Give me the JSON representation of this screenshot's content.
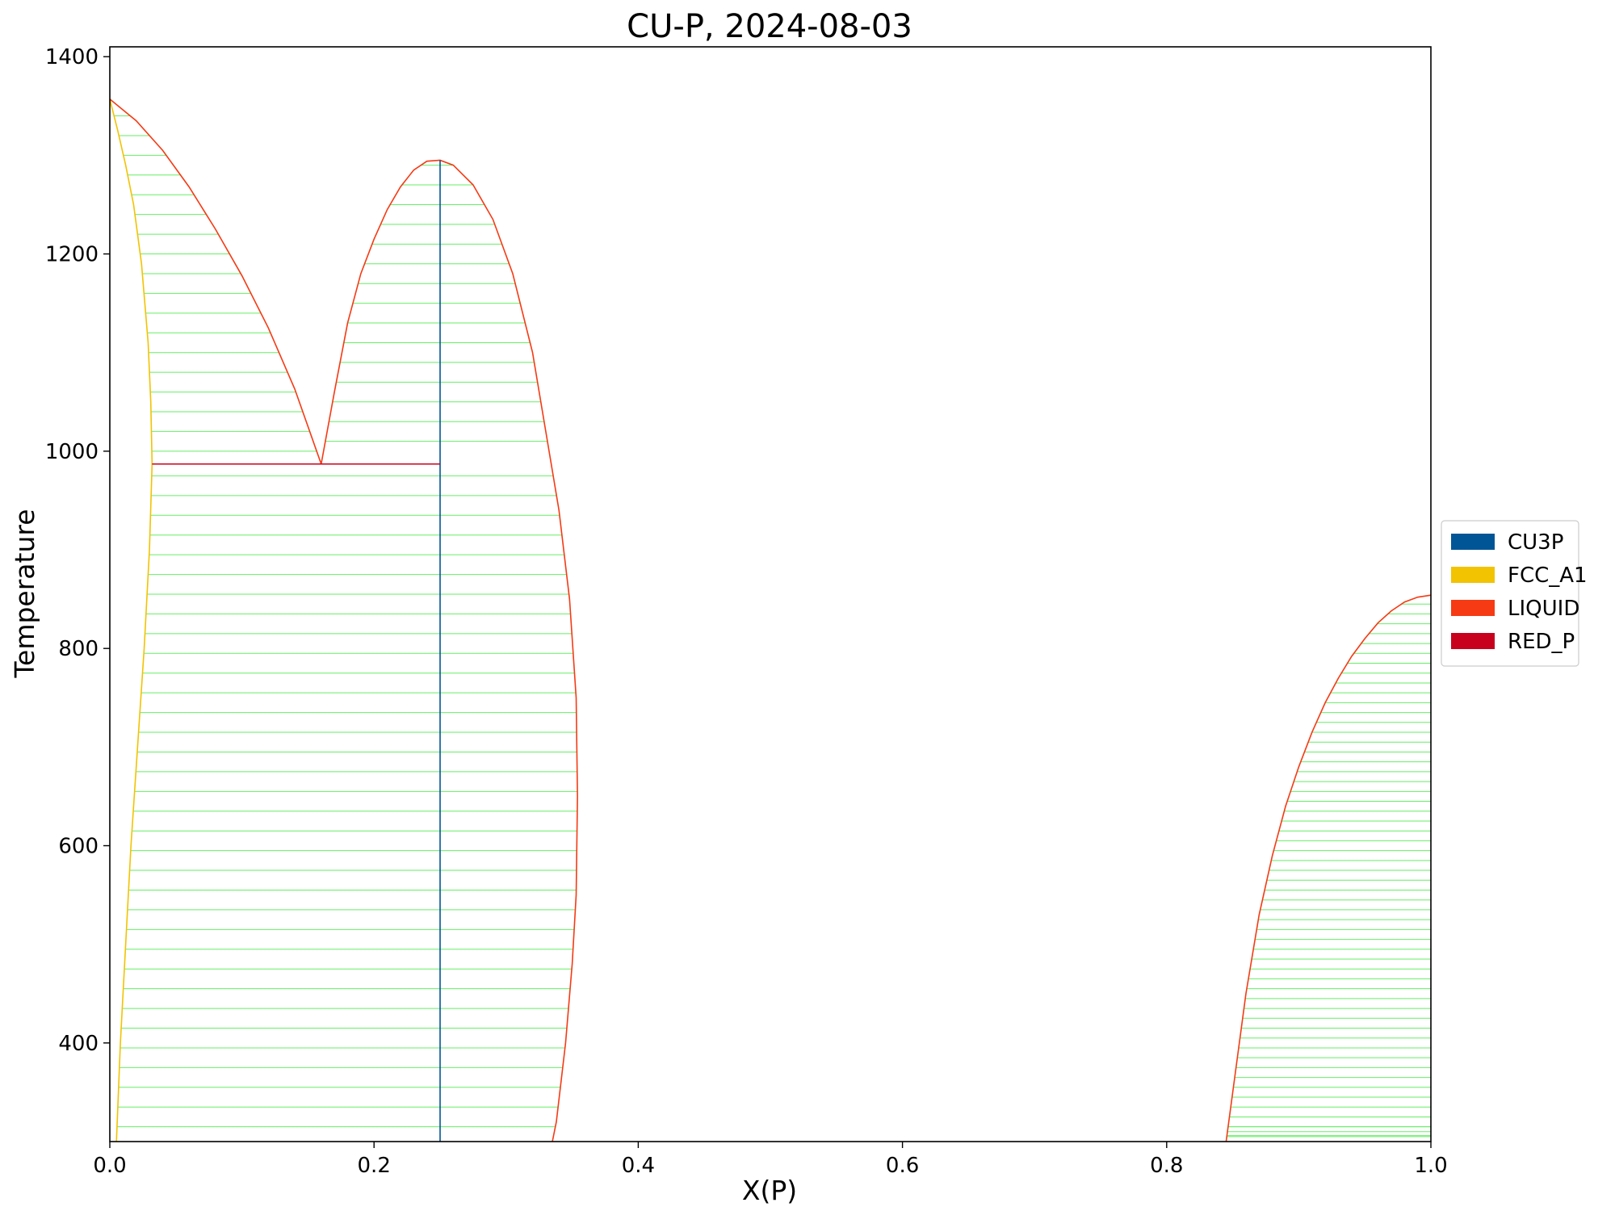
{
  "chart_data": {
    "type": "line",
    "title": "CU-P, 2024-08-03",
    "xlabel": "X(P)",
    "ylabel": "Temperature",
    "xlim": [
      0.0,
      1.0
    ],
    "ylim": [
      300,
      1410
    ],
    "xticks": [
      "0.0",
      "0.2",
      "0.4",
      "0.6",
      "0.8",
      "1.0"
    ],
    "yticks": [
      "400",
      "600",
      "800",
      "1000",
      "1200",
      "1400"
    ],
    "grid": false,
    "legend_position": "right",
    "legend": [
      {
        "name": "CU3P",
        "color": "#005596"
      },
      {
        "name": "FCC_A1",
        "color": "#F2C300"
      },
      {
        "name": "LIQUID",
        "color": "#F53A14"
      },
      {
        "name": "RED_P",
        "color": "#C8001E"
      }
    ],
    "tieline_color": "#66EE66",
    "series": [
      {
        "phase": "FCC_A1",
        "color": "#F2C300",
        "points": [
          [
            0.0,
            1357
          ],
          [
            0.006,
            1325
          ],
          [
            0.012,
            1290
          ],
          [
            0.018,
            1250
          ],
          [
            0.024,
            1190
          ],
          [
            0.029,
            1110
          ],
          [
            0.031,
            1050
          ],
          [
            0.032,
            987
          ],
          [
            0.03,
            900
          ],
          [
            0.026,
            800
          ],
          [
            0.021,
            700
          ],
          [
            0.016,
            600
          ],
          [
            0.012,
            500
          ],
          [
            0.008,
            400
          ],
          [
            0.005,
            300
          ]
        ]
      },
      {
        "phase": "LIQUID",
        "color": "#F53A14",
        "points": [
          [
            0.0,
            1357
          ],
          [
            0.02,
            1335
          ],
          [
            0.04,
            1305
          ],
          [
            0.06,
            1268
          ],
          [
            0.08,
            1225
          ],
          [
            0.1,
            1178
          ],
          [
            0.12,
            1125
          ],
          [
            0.14,
            1063
          ],
          [
            0.16,
            987
          ]
        ]
      },
      {
        "phase": "LIQUID",
        "color": "#F53A14",
        "points": [
          [
            0.16,
            987
          ],
          [
            0.17,
            1060
          ],
          [
            0.18,
            1130
          ],
          [
            0.19,
            1180
          ],
          [
            0.2,
            1215
          ],
          [
            0.21,
            1245
          ],
          [
            0.22,
            1268
          ],
          [
            0.23,
            1285
          ],
          [
            0.24,
            1294
          ],
          [
            0.25,
            1295
          ],
          [
            0.26,
            1290
          ],
          [
            0.275,
            1270
          ],
          [
            0.29,
            1235
          ],
          [
            0.305,
            1180
          ],
          [
            0.32,
            1100
          ],
          [
            0.33,
            1020
          ],
          [
            0.34,
            940
          ],
          [
            0.348,
            850
          ],
          [
            0.353,
            750
          ],
          [
            0.354,
            650
          ],
          [
            0.353,
            550
          ],
          [
            0.35,
            480
          ],
          [
            0.345,
            400
          ],
          [
            0.338,
            320
          ],
          [
            0.335,
            300
          ]
        ]
      },
      {
        "phase": "LIQUID",
        "color": "#F53A14",
        "points": [
          [
            0.845,
            300
          ],
          [
            0.85,
            350
          ],
          [
            0.86,
            450
          ],
          [
            0.87,
            530
          ],
          [
            0.88,
            590
          ],
          [
            0.89,
            640
          ],
          [
            0.9,
            680
          ],
          [
            0.91,
            715
          ],
          [
            0.92,
            745
          ],
          [
            0.93,
            770
          ],
          [
            0.94,
            792
          ],
          [
            0.95,
            810
          ],
          [
            0.96,
            826
          ],
          [
            0.97,
            838
          ],
          [
            0.98,
            847
          ],
          [
            0.99,
            852
          ],
          [
            1.0,
            854
          ]
        ]
      },
      {
        "phase": "CU3P",
        "color": "#005596",
        "points": [
          [
            0.25,
            300
          ],
          [
            0.25,
            1295
          ]
        ]
      },
      {
        "phase": "RED_P",
        "color": "#C8001E",
        "points": [
          [
            0.032,
            987
          ],
          [
            0.25,
            987
          ]
        ]
      }
    ]
  }
}
